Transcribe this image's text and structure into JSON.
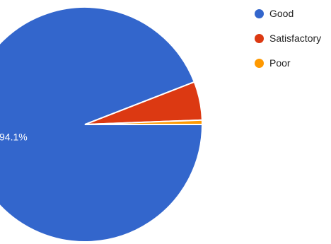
{
  "chart_data": {
    "type": "pie",
    "slices": [
      {
        "label": "Good",
        "value": 94.1,
        "color": "#3366cc",
        "data_label": "94.1%"
      },
      {
        "label": "Satisfactory",
        "value": 5.3,
        "color": "#dc3912",
        "data_label": ""
      },
      {
        "label": "Poor",
        "value": 0.6,
        "color": "#ff9900",
        "data_label": ""
      }
    ],
    "legend_position": "right"
  }
}
